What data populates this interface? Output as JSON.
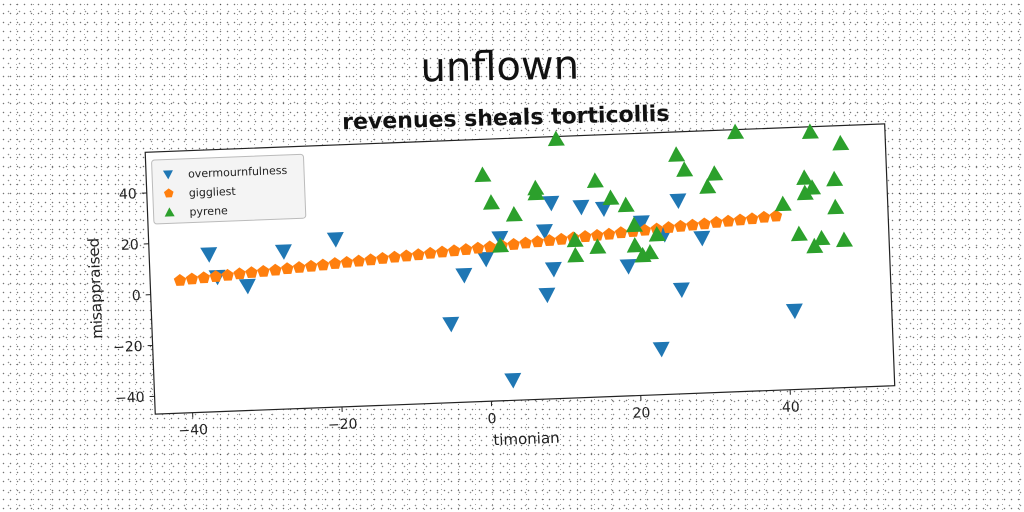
{
  "chart_data": {
    "type": "scatter",
    "title": "unflown",
    "subtitle": "revenues sheals torticollis",
    "xlabel": "timonian",
    "ylabel": "misappraised",
    "xlim": [
      -45,
      54
    ],
    "ylim": [
      -47,
      56
    ],
    "xticks": [
      -40,
      -20,
      0,
      20,
      40
    ],
    "yticks": [
      -40,
      -20,
      0,
      20,
      40
    ],
    "xtick_labels": [
      "−40",
      "−20",
      "0",
      "20",
      "40"
    ],
    "ytick_labels": [
      "−40",
      "−20",
      "0",
      "20",
      "40"
    ],
    "grid": false,
    "legend_position": "top-left",
    "series": [
      {
        "name": "overmournfulness",
        "marker": "triangle-down",
        "color": "#1f77b4",
        "points": [
          [
            -37,
            15
          ],
          [
            -36,
            6
          ],
          [
            -32,
            2
          ],
          [
            -27,
            15
          ],
          [
            -20,
            19
          ],
          [
            -5,
            -16
          ],
          [
            -3,
            3
          ],
          [
            0,
            9
          ],
          [
            2,
            17
          ],
          [
            3,
            -39
          ],
          [
            8,
            19
          ],
          [
            8,
            -6
          ],
          [
            9,
            4
          ],
          [
            9,
            30
          ],
          [
            13,
            28
          ],
          [
            16,
            27
          ],
          [
            19,
            4
          ],
          [
            21,
            21
          ],
          [
            24,
            16
          ],
          [
            23,
            -29
          ],
          [
            26,
            29
          ],
          [
            26,
            -6
          ],
          [
            29,
            14
          ],
          [
            41,
            -16
          ]
        ]
      },
      {
        "name": "giggliest",
        "marker": "pentagon",
        "color": "#ff7f0e",
        "points": [
          [
            -41,
            5.1
          ],
          [
            -39.4,
            5.5
          ],
          [
            -37.8,
            5.8
          ],
          [
            -36.2,
            6.1
          ],
          [
            -34.6,
            6.4
          ],
          [
            -33,
            6.8
          ],
          [
            -31.4,
            7.1
          ],
          [
            -29.8,
            7.4
          ],
          [
            -28.2,
            7.7
          ],
          [
            -26.6,
            8.1
          ],
          [
            -25,
            8.4
          ],
          [
            -23.4,
            8.7
          ],
          [
            -21.8,
            9
          ],
          [
            -20.2,
            9.4
          ],
          [
            -18.6,
            9.7
          ],
          [
            -17,
            10
          ],
          [
            -15.4,
            10.3
          ],
          [
            -13.8,
            10.7
          ],
          [
            -12.2,
            11
          ],
          [
            -10.6,
            11.3
          ],
          [
            -9,
            11.6
          ],
          [
            -7.4,
            12
          ],
          [
            -5.8,
            12.3
          ],
          [
            -4.2,
            12.6
          ],
          [
            -2.6,
            12.9
          ],
          [
            -1,
            13.3
          ],
          [
            0.6,
            13.6
          ],
          [
            2.2,
            13.9
          ],
          [
            3.8,
            14.2
          ],
          [
            5.4,
            14.6
          ],
          [
            7,
            14.9
          ],
          [
            8.6,
            15.2
          ],
          [
            10.2,
            15.5
          ],
          [
            11.8,
            15.9
          ],
          [
            13.4,
            16.2
          ],
          [
            15,
            16.5
          ],
          [
            16.6,
            16.8
          ],
          [
            18.2,
            17.2
          ],
          [
            19.8,
            17.5
          ],
          [
            21.4,
            17.8
          ],
          [
            23,
            18.1
          ],
          [
            24.6,
            18.5
          ],
          [
            26.2,
            18.8
          ],
          [
            27.8,
            19.1
          ],
          [
            29.4,
            19.4
          ],
          [
            31,
            19.8
          ],
          [
            32.6,
            20.1
          ],
          [
            34.2,
            20.4
          ],
          [
            35.8,
            20.7
          ],
          [
            37.4,
            21.1
          ],
          [
            39,
            21.4
          ]
        ]
      },
      {
        "name": "pyrene",
        "marker": "triangle-up",
        "color": "#2ca02c",
        "points": [
          [
            0,
            42
          ],
          [
            1,
            31
          ],
          [
            2,
            14
          ],
          [
            4,
            26
          ],
          [
            7,
            36
          ],
          [
            7,
            34
          ],
          [
            10,
            55
          ],
          [
            12,
            15
          ],
          [
            12,
            9
          ],
          [
            15,
            12
          ],
          [
            15,
            38
          ],
          [
            17,
            31
          ],
          [
            19,
            28
          ],
          [
            20,
            20
          ],
          [
            20,
            12
          ],
          [
            21,
            8
          ],
          [
            22,
            9
          ],
          [
            23,
            16
          ],
          [
            26,
            47
          ],
          [
            27,
            41
          ],
          [
            30,
            34
          ],
          [
            31,
            39
          ],
          [
            34,
            55
          ],
          [
            40,
            26
          ],
          [
            42,
            14
          ],
          [
            43,
            30
          ],
          [
            43,
            36
          ],
          [
            44,
            32
          ],
          [
            44,
            54
          ],
          [
            44,
            9
          ],
          [
            45,
            12
          ],
          [
            47,
            35
          ],
          [
            47,
            24
          ],
          [
            48,
            11
          ],
          [
            48,
            49
          ]
        ]
      }
    ]
  }
}
